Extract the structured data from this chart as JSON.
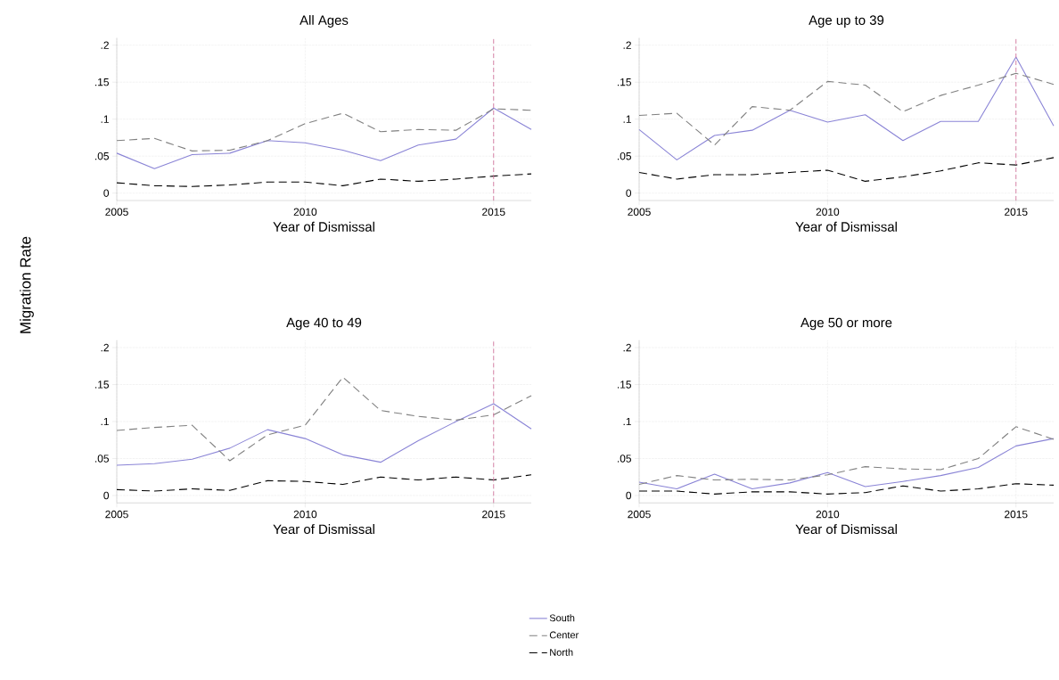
{
  "chart_data": [
    {
      "type": "line",
      "title": "All Ages",
      "xlabel": "Year of Dismissal",
      "ylabel": "Migration Rate",
      "x": [
        2005,
        2006,
        2007,
        2008,
        2009,
        2010,
        2011,
        2012,
        2013,
        2014,
        2015,
        2016
      ],
      "xlim": [
        2005,
        2016
      ],
      "ylim": [
        -0.01,
        0.21
      ],
      "xticks": [
        2005,
        2010,
        2015
      ],
      "yticks": [
        0,
        {
          "value": 0.05,
          "label": ".05"
        },
        {
          "value": 0.1,
          "label": ".1"
        },
        {
          "value": 0.15,
          "label": ".15"
        },
        {
          "value": 0.2,
          "label": ".2"
        }
      ],
      "grid": true,
      "legend": "bottom",
      "series": [
        {
          "name": "South",
          "color": "#8a84d6",
          "line_style": "solid",
          "values": [
            0.054,
            0.033,
            0.052,
            0.054,
            0.071,
            0.068,
            0.058,
            0.044,
            0.065,
            0.073,
            0.115,
            0.086
          ]
        },
        {
          "name": "Center",
          "color": "#808080",
          "line_style": "dashed",
          "values": [
            0.071,
            0.074,
            0.057,
            0.058,
            0.071,
            0.094,
            0.108,
            0.083,
            0.086,
            0.085,
            0.114,
            0.112
          ]
        },
        {
          "name": "North",
          "color": "#000000",
          "line_style": "dashed",
          "values": [
            0.014,
            0.01,
            0.009,
            0.011,
            0.015,
            0.015,
            0.01,
            0.019,
            0.016,
            0.019,
            0.023,
            0.026
          ]
        }
      ],
      "ref_lines": [
        {
          "axis": "x",
          "value": 2015,
          "color": "#d4789f",
          "line_style": "dashed"
        }
      ]
    },
    {
      "type": "line",
      "title": "Age up to 39",
      "xlabel": "Year of Dismissal",
      "x": [
        2005,
        2006,
        2007,
        2008,
        2009,
        2010,
        2011,
        2012,
        2013,
        2014,
        2015,
        2016
      ],
      "xlim": [
        2005,
        2016
      ],
      "ylim": [
        -0.01,
        0.21
      ],
      "xticks": [
        2005,
        2010,
        2015
      ],
      "yticks": [
        0,
        {
          "value": 0.05,
          "label": ".05"
        },
        {
          "value": 0.1,
          "label": ".1"
        },
        {
          "value": 0.15,
          "label": ".15"
        },
        {
          "value": 0.2,
          "label": ".2"
        }
      ],
      "grid": true,
      "series": [
        {
          "color": "#8a84d6",
          "line_style": "solid",
          "values": [
            0.086,
            0.045,
            0.078,
            0.085,
            0.112,
            0.096,
            0.106,
            0.071,
            0.097,
            0.097,
            0.184,
            0.091
          ]
        },
        {
          "color": "#808080",
          "line_style": "dashed",
          "values": [
            0.105,
            0.108,
            0.065,
            0.117,
            0.112,
            0.151,
            0.146,
            0.11,
            0.132,
            0.146,
            0.162,
            0.147
          ]
        },
        {
          "color": "#000000",
          "line_style": "dashed",
          "values": [
            0.028,
            0.019,
            0.025,
            0.025,
            0.028,
            0.031,
            0.016,
            0.022,
            0.03,
            0.041,
            0.038,
            0.048
          ]
        }
      ],
      "ref_lines": [
        {
          "axis": "x",
          "value": 2015,
          "color": "#d4789f",
          "line_style": "dashed"
        }
      ]
    },
    {
      "type": "line",
      "title": "Age 40 to 49",
      "xlabel": "Year of Dismissal",
      "x": [
        2005,
        2006,
        2007,
        2008,
        2009,
        2010,
        2011,
        2012,
        2013,
        2014,
        2015,
        2016
      ],
      "xlim": [
        2005,
        2016
      ],
      "ylim": [
        -0.01,
        0.21
      ],
      "xticks": [
        2005,
        2010,
        2015
      ],
      "yticks": [
        0,
        {
          "value": 0.05,
          "label": ".05"
        },
        {
          "value": 0.1,
          "label": ".1"
        },
        {
          "value": 0.15,
          "label": ".15"
        },
        {
          "value": 0.2,
          "label": ".2"
        }
      ],
      "grid": true,
      "series": [
        {
          "color": "#8a84d6",
          "line_style": "solid",
          "values": [
            0.041,
            0.043,
            0.049,
            0.064,
            0.089,
            0.077,
            0.055,
            0.045,
            0.074,
            0.1,
            0.124,
            0.09
          ]
        },
        {
          "color": "#808080",
          "line_style": "dashed",
          "values": [
            0.088,
            0.092,
            0.095,
            0.047,
            0.082,
            0.095,
            0.16,
            0.115,
            0.107,
            0.102,
            0.109,
            0.135
          ]
        },
        {
          "color": "#000000",
          "line_style": "dashed",
          "values": [
            0.008,
            0.006,
            0.009,
            0.007,
            0.02,
            0.019,
            0.015,
            0.025,
            0.021,
            0.025,
            0.021,
            0.028
          ]
        }
      ],
      "ref_lines": [
        {
          "axis": "x",
          "value": 2015,
          "color": "#d4789f",
          "line_style": "dashed"
        }
      ]
    },
    {
      "type": "line",
      "title": "Age 50 or more",
      "xlabel": "Year of Dismissal",
      "x": [
        2005,
        2006,
        2007,
        2008,
        2009,
        2010,
        2011,
        2012,
        2013,
        2014,
        2015,
        2016
      ],
      "xlim": [
        2005,
        2016
      ],
      "ylim": [
        -0.01,
        0.21
      ],
      "xticks": [
        2005,
        2010,
        2015
      ],
      "yticks": [
        0,
        {
          "value": 0.05,
          "label": ".05"
        },
        {
          "value": 0.1,
          "label": ".1"
        },
        {
          "value": 0.15,
          "label": ".15"
        },
        {
          "value": 0.2,
          "label": ".2"
        }
      ],
      "grid": true,
      "series": [
        {
          "color": "#8a84d6",
          "line_style": "solid",
          "values": [
            0.018,
            0.009,
            0.029,
            0.009,
            0.017,
            0.031,
            0.012,
            0.019,
            0.027,
            0.038,
            0.067,
            0.077
          ]
        },
        {
          "color": "#808080",
          "line_style": "dashed",
          "values": [
            0.015,
            0.027,
            0.021,
            0.022,
            0.021,
            0.028,
            0.039,
            0.036,
            0.035,
            0.05,
            0.093,
            0.076
          ]
        },
        {
          "color": "#000000",
          "line_style": "dashed",
          "values": [
            0.006,
            0.006,
            0.002,
            0.005,
            0.005,
            0.002,
            0.004,
            0.013,
            0.006,
            0.009,
            0.016,
            0.014
          ]
        }
      ]
    }
  ]
}
